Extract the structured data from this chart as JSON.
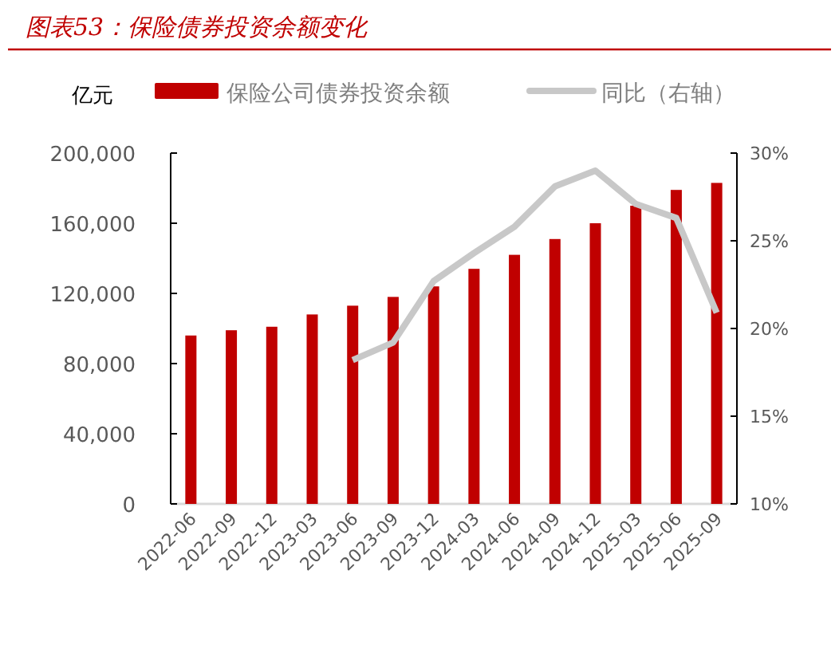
{
  "chart_data": {
    "type": "bar",
    "title": "图表53：保险债券投资余额变化",
    "ylabel": "亿元",
    "categories": [
      "2022-06",
      "2022-09",
      "2022-12",
      "2023-03",
      "2023-06",
      "2023-09",
      "2023-12",
      "2024-03",
      "2024-06",
      "2024-09",
      "2024-12",
      "2025-03",
      "2025-06",
      "2025-09"
    ],
    "series": [
      {
        "name": "保险公司债券投资余额",
        "color": "#c00000",
        "values": [
          96000,
          99000,
          101000,
          108000,
          113000,
          118000,
          124000,
          134000,
          142000,
          151000,
          160000,
          170000,
          179000,
          183000
        ]
      },
      {
        "name": "同比（右轴）",
        "type": "line",
        "axis": "y2",
        "color": "#c8c8c8",
        "values": [
          null,
          null,
          null,
          null,
          18.2,
          19.2,
          22.7,
          24.3,
          25.8,
          28.1,
          29.0,
          27.1,
          26.3,
          20.9
        ]
      }
    ],
    "ylim": [
      0,
      200000
    ],
    "yticks": [
      {
        "value": 0,
        "label": "0"
      },
      {
        "value": 40000,
        "label": "40,000"
      },
      {
        "value": 80000,
        "label": "80,000"
      },
      {
        "value": 120000,
        "label": "120,000"
      },
      {
        "value": 160000,
        "label": "160,000"
      },
      {
        "value": 200000,
        "label": "200,000"
      }
    ],
    "y2lim": [
      10,
      30
    ],
    "y2ticks": [
      {
        "value": 10,
        "label": "10%"
      },
      {
        "value": 15,
        "label": "15%"
      },
      {
        "value": 20,
        "label": "20%"
      },
      {
        "value": 25,
        "label": "25%"
      },
      {
        "value": 30,
        "label": "30%"
      }
    ],
    "legend": "top",
    "grid": false
  }
}
